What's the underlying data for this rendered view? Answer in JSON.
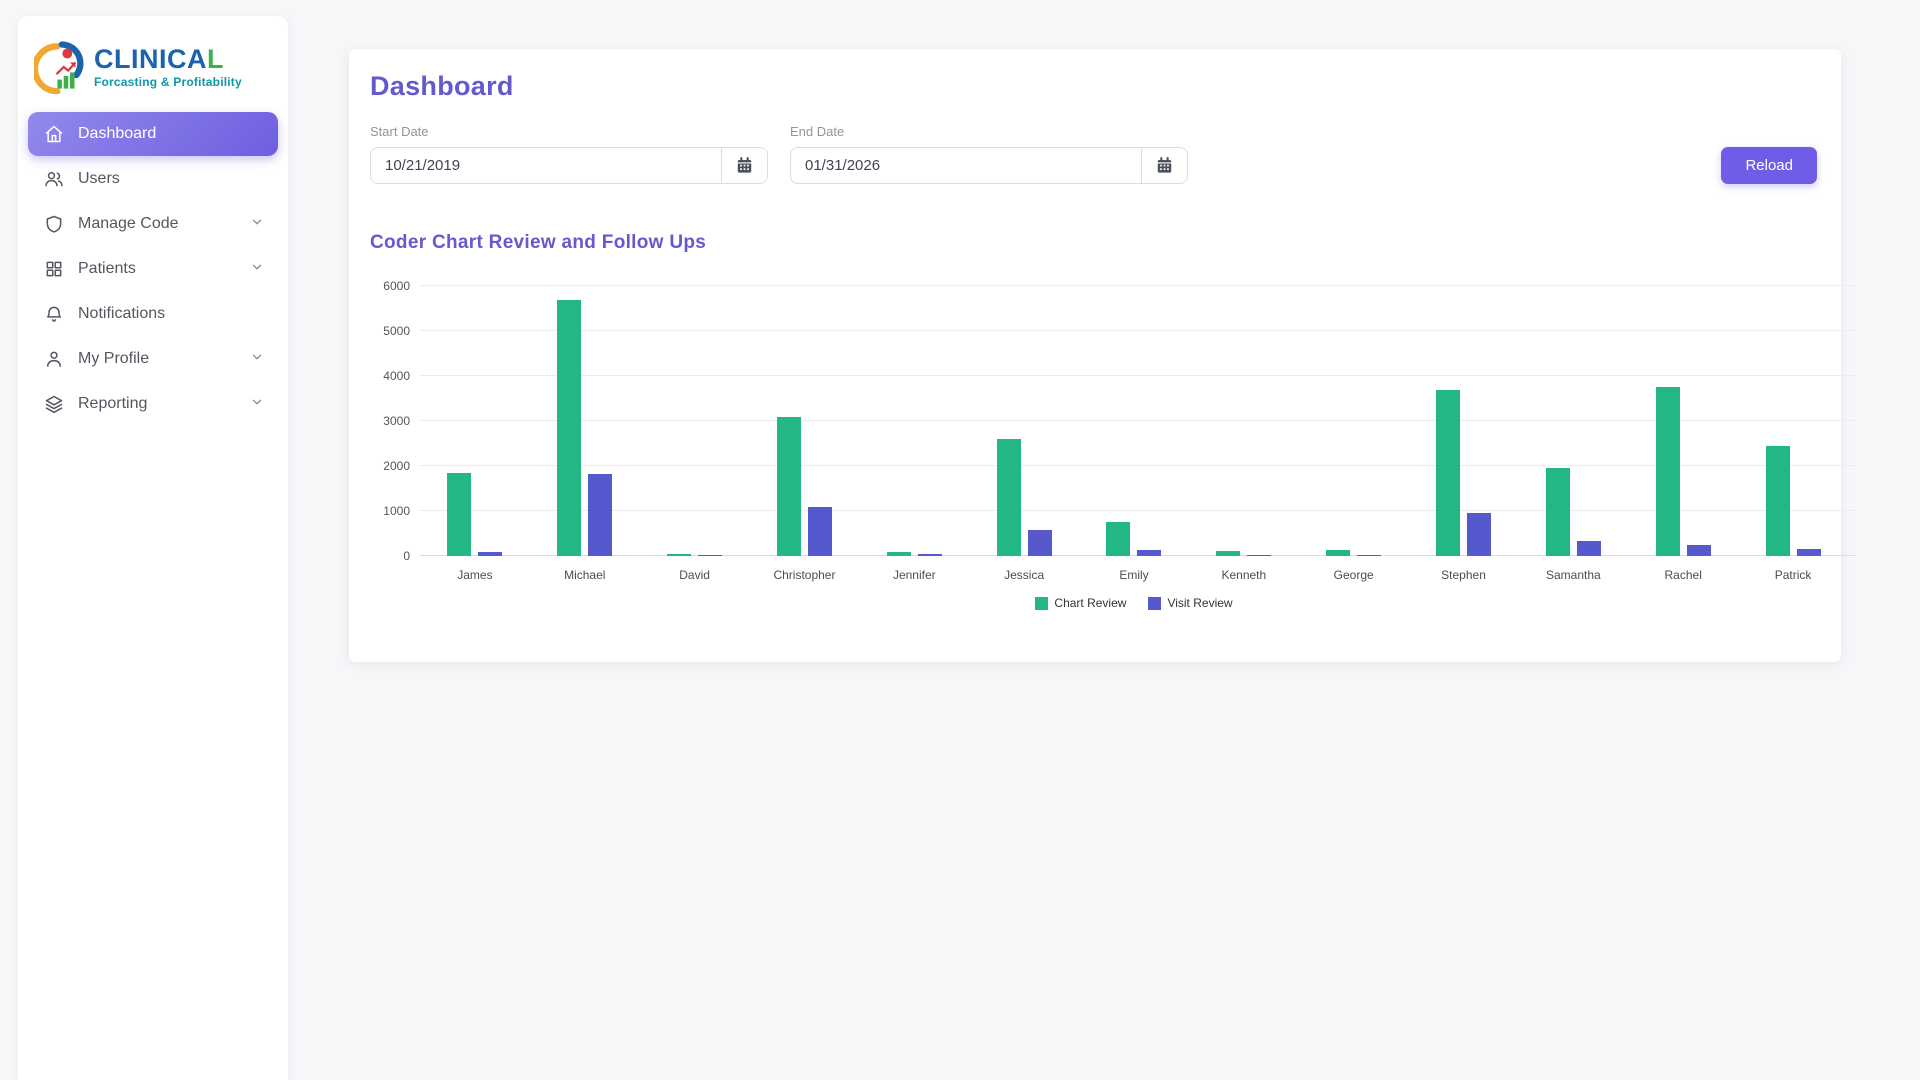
{
  "app": {
    "name_prefix": "CLINICA",
    "name_suffix": "L",
    "tagline": "Forcasting & Profitability"
  },
  "sidebar": {
    "items": [
      {
        "label": "Dashboard",
        "icon": "home-icon",
        "active": true,
        "chevron": false
      },
      {
        "label": "Users",
        "icon": "users-icon",
        "active": false,
        "chevron": false
      },
      {
        "label": "Manage Code",
        "icon": "shield-icon",
        "active": false,
        "chevron": true
      },
      {
        "label": "Patients",
        "icon": "grid-icon",
        "active": false,
        "chevron": true
      },
      {
        "label": "Notifications",
        "icon": "bell-icon",
        "active": false,
        "chevron": false
      },
      {
        "label": "My Profile",
        "icon": "user-icon",
        "active": false,
        "chevron": true
      },
      {
        "label": "Reporting",
        "icon": "layers-icon",
        "active": false,
        "chevron": true
      }
    ]
  },
  "header": {
    "title": "Dashboard"
  },
  "filters": {
    "start_label": "Start Date",
    "start_value": "10/21/2019",
    "end_label": "End Date",
    "end_value": "01/31/2026",
    "reload_label": "Reload"
  },
  "chart_section": {
    "title": "Coder Chart Review and Follow Ups"
  },
  "chart_data": {
    "type": "bar",
    "title": "Coder Chart Review and Follow Ups",
    "categories": [
      "James",
      "Michael",
      "David",
      "Christopher",
      "Jennifer",
      "Jessica",
      "Emily",
      "Kenneth",
      "George",
      "Stephen",
      "Samantha",
      "Rachel",
      "Patrick"
    ],
    "series": [
      {
        "name": "Chart Review",
        "color": "#22b783",
        "values": [
          1850,
          5700,
          50,
          3100,
          90,
          2600,
          750,
          110,
          130,
          3700,
          1950,
          3750,
          2450
        ]
      },
      {
        "name": "Visit Review",
        "color": "#5559cd",
        "values": [
          100,
          1820,
          30,
          1100,
          40,
          580,
          140,
          20,
          15,
          950,
          340,
          250,
          150
        ]
      }
    ],
    "xlabel": "",
    "ylabel": "",
    "ylim": [
      0,
      6000
    ],
    "yticks": [
      0,
      1000,
      2000,
      3000,
      4000,
      5000,
      6000
    ],
    "grid": true,
    "legend_position": "bottom"
  },
  "colors": {
    "accent_purple": "#6559ce",
    "button_purple": "#6f5de8",
    "bar_green": "#22b783",
    "bar_purple": "#5559cd"
  }
}
